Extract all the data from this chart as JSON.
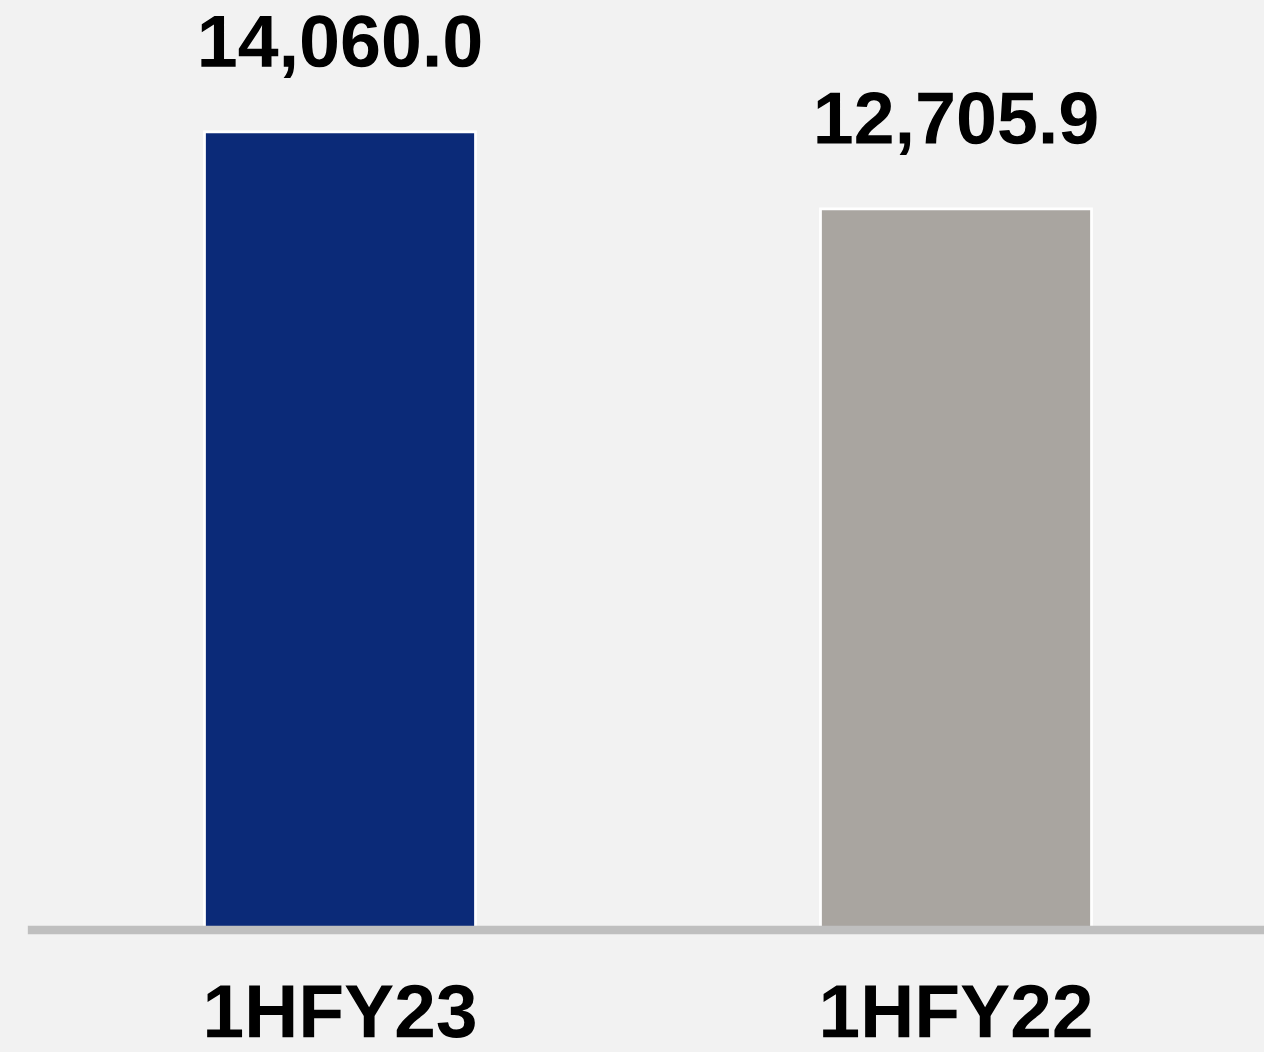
{
  "chart_data": {
    "type": "bar",
    "categories": [
      "1HFY23",
      "1HFY22"
    ],
    "values": [
      14060.0,
      12705.9
    ],
    "colors": [
      "#0b2a78",
      "#a9a5a0"
    ],
    "value_labels": [
      "14,060.0",
      "12,705.9"
    ],
    "tick_labels": "x",
    "grid": false,
    "legend": false
  }
}
